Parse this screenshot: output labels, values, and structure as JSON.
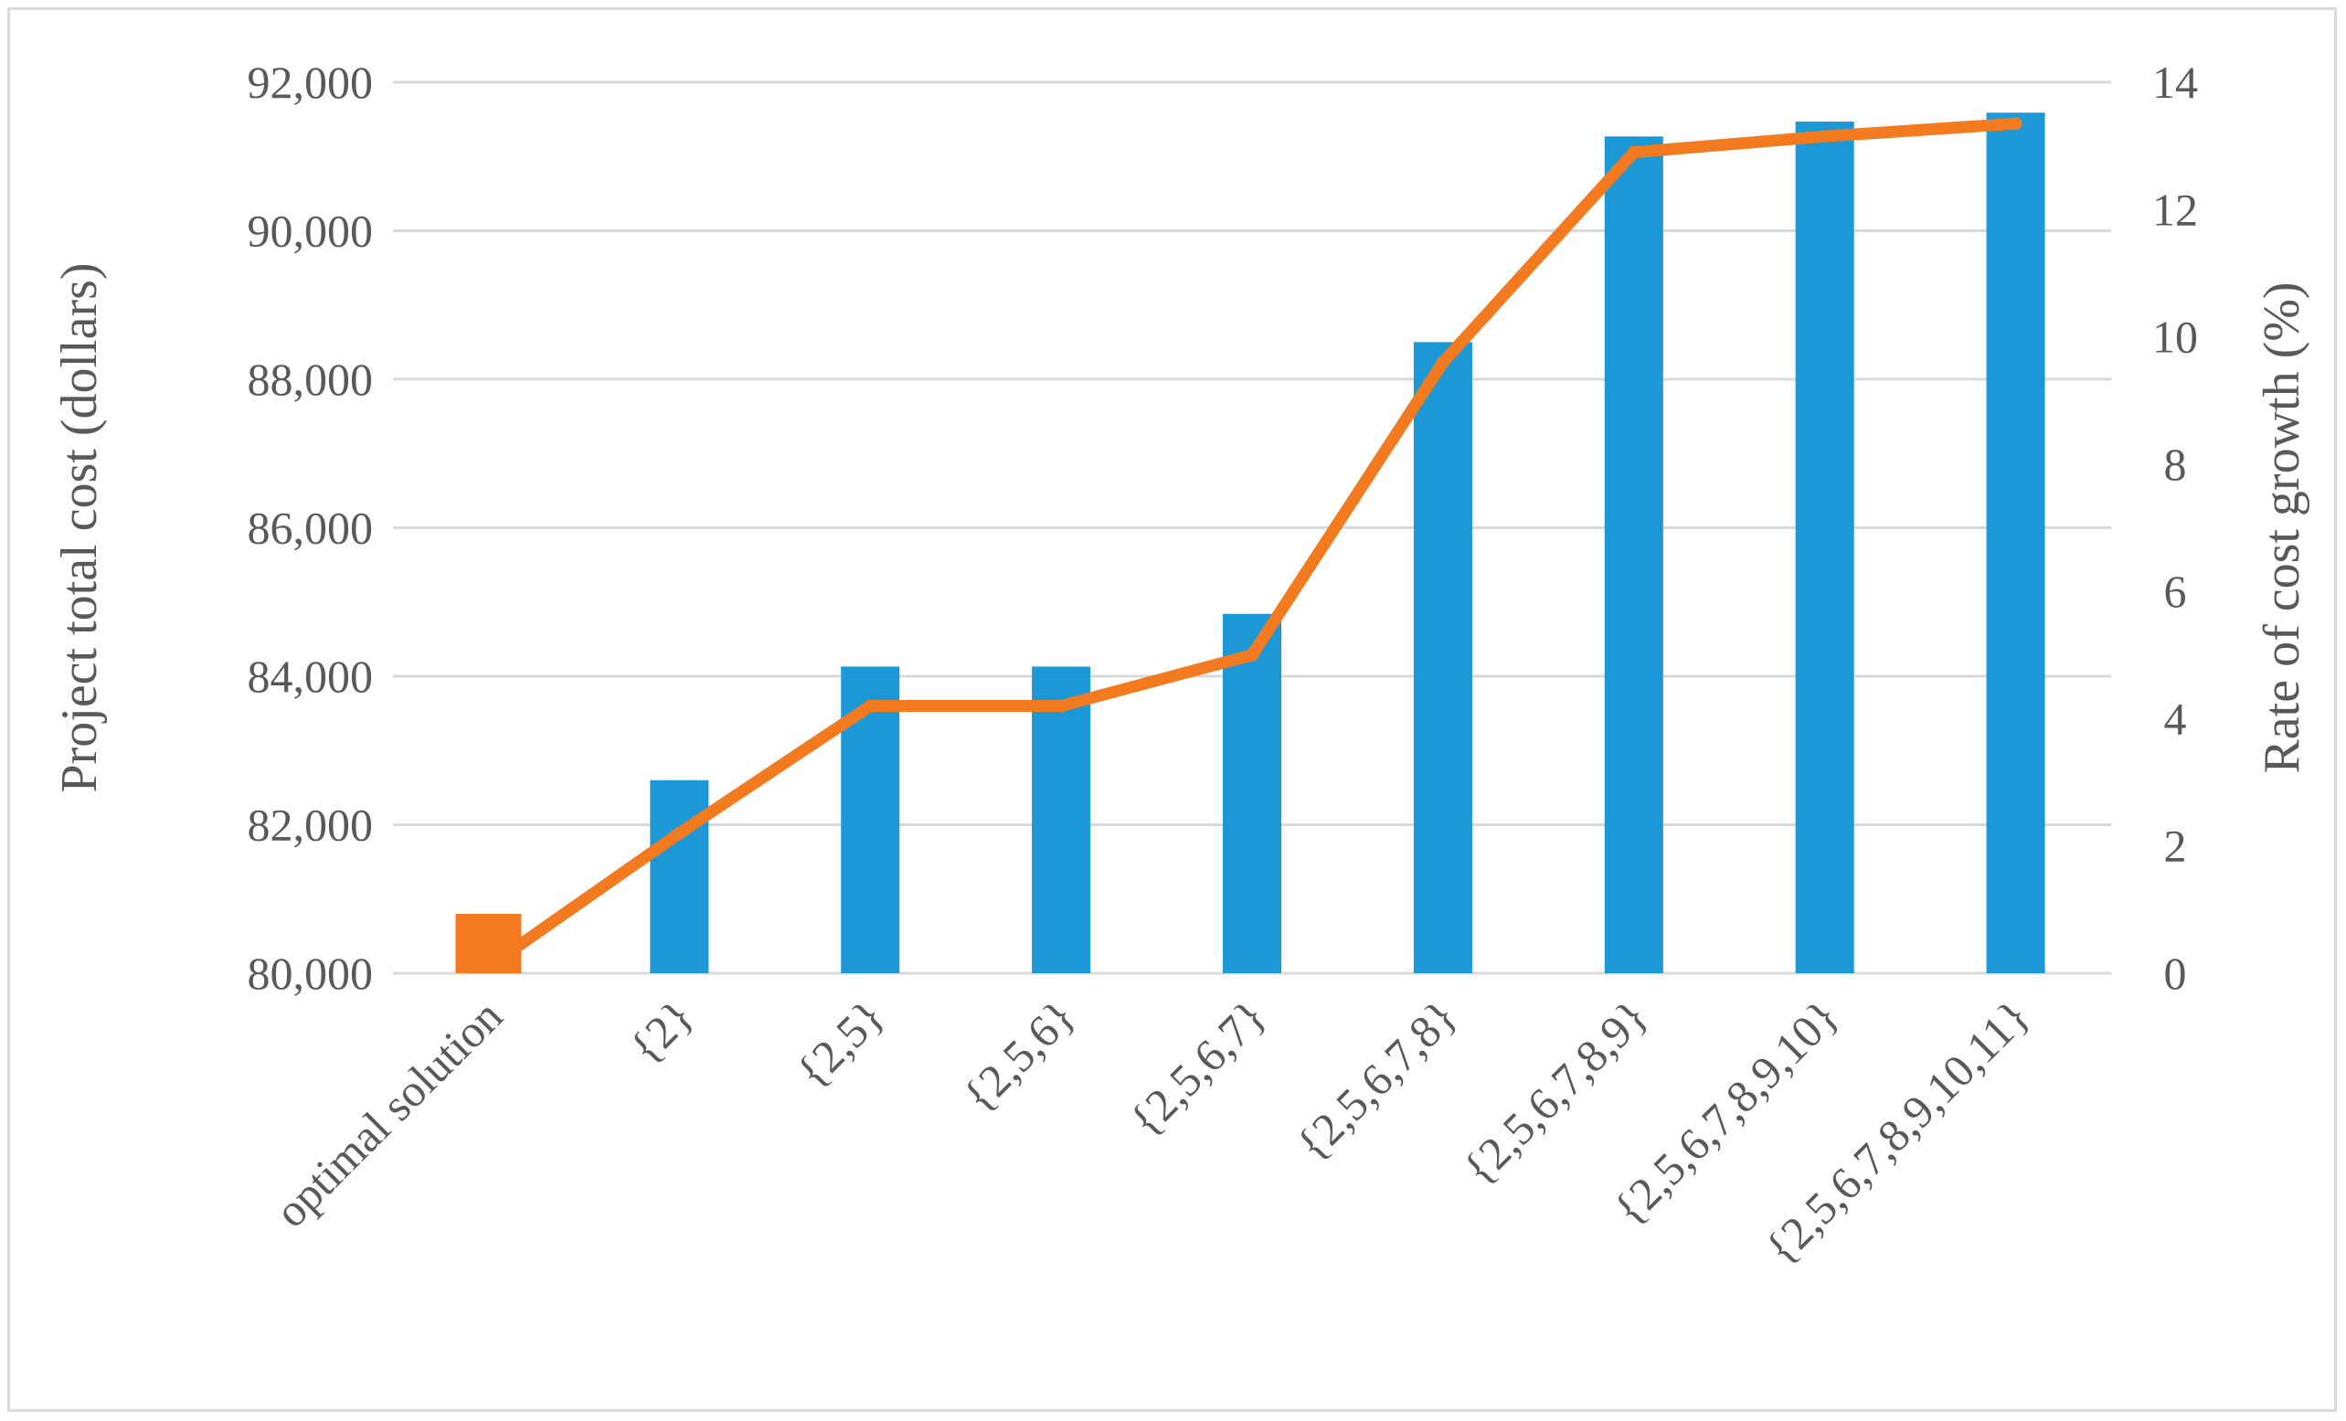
{
  "chart_data": {
    "type": "bar+line",
    "categories": [
      "optimal solution",
      "{2}",
      "{2,5}",
      "{2,5,6}",
      "{2,5,6,7}",
      "{2,5,6,7,8}",
      "{2,5,6,7,8,9}",
      "{2,5,6,7,8,9,10}",
      "{2,5,6,7,8,9,10,11}"
    ],
    "series": [
      {
        "type": "bar",
        "axis": "left",
        "color": "#1b98d5",
        "values": [
          80800,
          82600,
          84130,
          84130,
          84840,
          88500,
          91270,
          91470,
          91590
        ]
      },
      {
        "type": "line",
        "axis": "right",
        "color": "#f47a20",
        "values": [
          0.1,
          2.2,
          4.2,
          4.2,
          5.0,
          9.6,
          12.9,
          13.15,
          13.35
        ]
      }
    ],
    "ylabel": "Project total cost (dollars)",
    "y2label": "Rate of cost growth (%)",
    "ylim": [
      80000,
      92000
    ],
    "y2lim": [
      0,
      14
    ],
    "yticks": [
      "80,000",
      "82,000",
      "84,000",
      "86,000",
      "88,000",
      "90,000",
      "92,000"
    ],
    "y2ticks": [
      "0",
      "2",
      "4",
      "6",
      "8",
      "10",
      "12",
      "14"
    ],
    "grid": true,
    "legend": "none"
  }
}
